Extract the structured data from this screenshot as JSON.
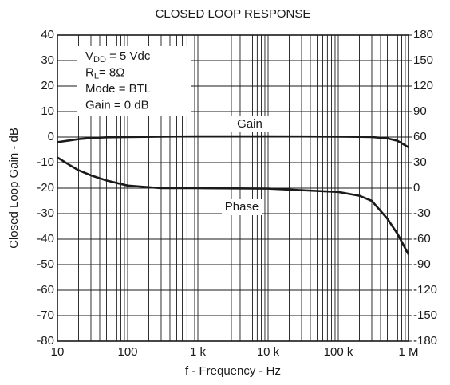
{
  "chart_data": {
    "type": "line",
    "title": "CLOSED LOOP RESPONSE",
    "x_label": "f - Frequency - Hz",
    "y_label": "Closed Loop Gain - dB",
    "x_scale": "log",
    "xlim": [
      10,
      1000000
    ],
    "xticks": [
      10,
      100,
      {
        "value": 1000,
        "label": "1 k"
      },
      {
        "value": 10000,
        "label": "10 k"
      },
      {
        "value": 100000,
        "label": "100 k"
      },
      {
        "value": 1000000,
        "label": "1 M"
      }
    ],
    "ylim": [
      -80,
      40
    ],
    "yticks": [
      40,
      30,
      20,
      10,
      0,
      -10,
      -20,
      -30,
      -40,
      -50,
      -60,
      -70,
      -80
    ],
    "y2lim": [
      -180,
      180
    ],
    "y2ticks": [
      180,
      150,
      120,
      90,
      60,
      30,
      0,
      -30,
      -60,
      -90,
      -120,
      -150,
      -180
    ],
    "grid": true,
    "minor_grid": true,
    "x": [
      10,
      15,
      20,
      30,
      50,
      100,
      300,
      1000,
      10000,
      100000,
      200000,
      300000,
      500000,
      700000,
      1000000
    ],
    "series": [
      {
        "name": "Gain",
        "color": "#1a1a1a",
        "values": [
          -2,
          -1.3,
          -0.8,
          -0.4,
          -0.1,
          0,
          0.2,
          0.3,
          0.3,
          0.2,
          0.1,
          0,
          -0.5,
          -1.5,
          -4
        ]
      },
      {
        "name": "Phase",
        "color": "#1a1a1a",
        "axis": "y2",
        "values": [
          36,
          27,
          21,
          15,
          9,
          3,
          0,
          0,
          -0.6,
          -4.5,
          -9,
          -15,
          -36,
          -54,
          -78
        ]
      }
    ],
    "conditions": [
      [
        {
          "text": "V"
        },
        {
          "text": "DD",
          "sub": true
        },
        {
          "text": " = 5 Vdc"
        }
      ],
      [
        {
          "text": "R"
        },
        {
          "text": "L",
          "sub": true
        },
        {
          "text": "= 8Ω"
        }
      ],
      [
        {
          "text": "Mode = BTL"
        }
      ],
      [
        {
          "text": "Gain = 0 dB"
        }
      ]
    ]
  }
}
